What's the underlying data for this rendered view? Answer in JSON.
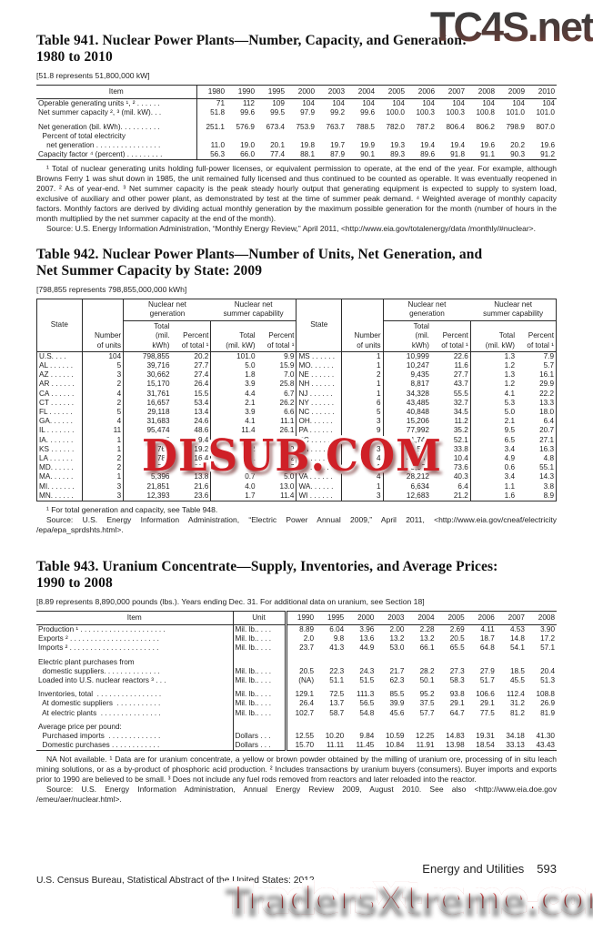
{
  "watermarks": {
    "top_right": "TC4S.net",
    "center": "DLSUB.COM",
    "bottom": "TradersXtreme.com"
  },
  "footer": {
    "census_line": "U.S. Census Bureau, Statistical Abstract of the United States: 2012",
    "section": "Energy and Utilities",
    "page": "593"
  },
  "table941": {
    "title_line1": "Table 941. Nuclear Power Plants—Number, Capacity, and Generation:",
    "title_line2": "1980 to 2010",
    "bracket_note": "[51.8 represents 51,800,000 kW]",
    "item_header": "Item",
    "years": [
      "1980",
      "1990",
      "1995",
      "2000",
      "2003",
      "2004",
      "2005",
      "2006",
      "2007",
      "2008",
      "2009",
      "2010"
    ],
    "rows": [
      {
        "cells": [
          "Operable generating units ¹, ² . . . . . .",
          "71",
          "112",
          "109",
          "104",
          "104",
          "104",
          "104",
          "104",
          "104",
          "104",
          "104",
          "104"
        ]
      },
      {
        "cells": [
          "Net summer capacity ², ³ (mil. kW). . .",
          "51.8",
          "99.6",
          "99.5",
          "97.9",
          "99.2",
          "99.6",
          "100.0",
          "100.3",
          "100.3",
          "100.8",
          "101.0",
          "101.0"
        ]
      },
      {
        "spacer": true,
        "cells": []
      },
      {
        "cells": [
          "Net generation (bil. kWh). . . . . . . . . .",
          "251.1",
          "576.9",
          "673.4",
          "753.9",
          "763.7",
          "788.5",
          "782.0",
          "787.2",
          "806.4",
          "806.2",
          "798.9",
          "807.0"
        ]
      },
      {
        "cells": [
          "  Percent of total electricity",
          "",
          "",
          "",
          "",
          "",
          "",
          "",
          "",
          "",
          "",
          "",
          ""
        ]
      },
      {
        "cells": [
          "    net generation . . . . . . . . . . . . . . . .",
          "11.0",
          "19.0",
          "20.1",
          "19.8",
          "19.7",
          "19.9",
          "19.3",
          "19.4",
          "19.4",
          "19.6",
          "20.2",
          "19.6"
        ]
      },
      {
        "cells": [
          "Capacity factor ⁴ (percent) . . . . . . . . .",
          "56.3",
          "66.0",
          "77.4",
          "88.1",
          "87.9",
          "90.1",
          "89.3",
          "89.6",
          "91.8",
          "91.1",
          "90.3",
          "91.2"
        ]
      }
    ],
    "footnote": "¹ Total of nuclear generating units holding full-power licenses, or equivalent permission to operate, at the end of the year. For example, although Browns Ferry 1 was shut down in 1985, the unit remained fully licensed and thus continued to be counted as operable. It was eventually reopened in 2007. ² As of year-end. ³ Net summer capacity is the peak steady hourly output that generating equipment is expected to supply to system load, exclusive of auxiliary and other power plant, as demonstrated by test at the time of summer peak demand. ⁴ Weighted average of monthly capacity factors. Monthly factors are derived by dividing actual monthly generation by the maximum possible generation for the month (number of hours in the month multiplied by the net summer capacity at the end of the month).",
    "source": "Source: U.S. Energy Information Administration, “Monthly Energy Review,” April 2011, <http://www.eia.gov/totalenergy/data /monthly/#nuclear>."
  },
  "table942": {
    "title_line1": "Table 942. Nuclear Power Plants—Number of Units, Net Generation, and",
    "title_line2": "Net Summer Capacity by State: 2009",
    "bracket_note": "[798,855 represents 798,855,000,000 kWh]",
    "headers": {
      "state": "State",
      "units": "Number\nof units",
      "gen_group": "Nuclear net\ngeneration",
      "cap_group": "Nuclear net\nsummer capability",
      "gen_total": "Total\n(mil.\nkWh)",
      "gen_pct": "Percent\nof total ¹",
      "cap_total": "Total\n(mil. kW)",
      "cap_pct": "Percent\nof total ¹"
    },
    "rows": [
      {
        "cells": [
          "U.S. . . .",
          "104",
          "798,855",
          "20.2",
          "101.0",
          "9.9",
          "MS . . . . . .",
          "1",
          "10,999",
          "22.6",
          "1.3",
          "7.9"
        ],
        "bold_cells": [
          0,
          1,
          2,
          3,
          4,
          5
        ]
      },
      {
        "cells": [
          "AL . . . . . .",
          "5",
          "39,716",
          "27.7",
          "5.0",
          "15.9",
          "MO. . . . . .",
          "1",
          "10,247",
          "11.6",
          "1.2",
          "5.7"
        ]
      },
      {
        "cells": [
          "AZ . . . . . .",
          "3",
          "30,662",
          "27.4",
          "1.8",
          "7.0",
          "NE . . . . . .",
          "2",
          "9,435",
          "27.7",
          "1.3",
          "16.1"
        ]
      },
      {
        "cells": [
          "AR . . . . . .",
          "2",
          "15,170",
          "26.4",
          "3.9",
          "25.8",
          "NH . . . . . .",
          "1",
          "8,817",
          "43.7",
          "1.2",
          "29.9"
        ]
      },
      {
        "cells": [
          "CA . . . . . .",
          "4",
          "31,761",
          "15.5",
          "4.4",
          "6.7",
          "NJ . . . . . .",
          "1",
          "34,328",
          "55.5",
          "4.1",
          "22.2"
        ]
      },
      {
        "cells": [
          "CT . . . . . .",
          "2",
          "16,657",
          "53.4",
          "2.1",
          "26.2",
          "NY . . . . . .",
          "6",
          "43,485",
          "32.7",
          "5.3",
          "13.3"
        ]
      },
      {
        "cells": [
          "FL . . . . . .",
          "5",
          "29,118",
          "13.4",
          "3.9",
          "6.6",
          "NC . . . . . .",
          "5",
          "40,848",
          "34.5",
          "5.0",
          "18.0"
        ]
      },
      {
        "cells": [
          "GA. . . . . .",
          "4",
          "31,683",
          "24.6",
          "4.1",
          "11.1",
          "OH. . . . . .",
          "3",
          "15,206",
          "11.2",
          "2.1",
          "6.4"
        ]
      },
      {
        "cells": [
          "IL . . . . . . .",
          "11",
          "95,474",
          "48.6",
          "11.4",
          "26.1",
          "PA . . . . . .",
          "9",
          "77,992",
          "35.2",
          "9.5",
          "20.7"
        ]
      },
      {
        "cells": [
          "IA. . . . . . .",
          "1",
          "4,675",
          "9.4",
          "0.6",
          "4.2",
          "SC . . . . . .",
          "7",
          "51,744",
          "52.1",
          "6.5",
          "27.1"
        ]
      },
      {
        "cells": [
          "KS . . . . . .",
          "1",
          "8,765",
          "19.2",
          "1.2",
          "9.0",
          "TN . . . . . .",
          "3",
          "27,542",
          "33.8",
          "3.4",
          "16.3"
        ]
      },
      {
        "cells": [
          "LA . . . . . .",
          "2",
          "16,782",
          "16.4",
          "2.1",
          "8.2",
          "TX . . . . . .",
          "4",
          "41,456",
          "10.4",
          "4.9",
          "4.8"
        ]
      },
      {
        "cells": [
          "MD. . . . . .",
          "2",
          "14,550",
          "33.2",
          "1.7",
          "13.7",
          "VT . . . . . .",
          "1",
          "5,361",
          "73.6",
          "0.6",
          "55.1"
        ]
      },
      {
        "cells": [
          "MA. . . . . .",
          "1",
          "5,396",
          "13.8",
          "0.7",
          "5.0",
          "VA . . . . . .",
          "4",
          "28,212",
          "40.3",
          "3.4",
          "14.3"
        ]
      },
      {
        "cells": [
          "MI. . . . . . .",
          "3",
          "21,851",
          "21.6",
          "4.0",
          "13.0",
          "WA. . . . . .",
          "1",
          "6,634",
          "6.4",
          "1.1",
          "3.8"
        ]
      },
      {
        "cells": [
          "MN. . . . . .",
          "3",
          "12,393",
          "23.6",
          "1.7",
          "11.4",
          "WI . . . . . .",
          "3",
          "12,683",
          "21.2",
          "1.6",
          "8.9"
        ]
      }
    ],
    "footnote": "¹ For total generation and capacity, see Table 948.",
    "source": "Source: U.S. Energy Information Administration, “Electric Power Annual 2009,” April 2011, <http://www.eia.gov/cneaf/electricity /epa/epa_sprdshts.html>."
  },
  "table943": {
    "title_line1": "Table 943. Uranium Concentrate—Supply, Inventories, and Average Prices:",
    "title_line2": "1990 to 2008",
    "bracket_note": "[8.89 represents 8,890,000 pounds (lbs.). Years ending Dec. 31. For additional data on uranium, see Section 18]",
    "item_header": "Item",
    "unit_header": "Unit",
    "years": [
      "1990",
      "1995",
      "2000",
      "2003",
      "2004",
      "2005",
      "2006",
      "2007",
      "2008"
    ],
    "rows": [
      {
        "cells": [
          "Production ¹ . . . . . . . . . . . . . . . . . . . . .",
          "Mil. lb.. . . .",
          "8.89",
          "6.04",
          "3.96",
          "2.00",
          "2.28",
          "2.69",
          "4.11",
          "4.53",
          "3.90"
        ]
      },
      {
        "cells": [
          "Exports ² . . . . . . . . . . . . . . . . . . . . . .",
          "Mil. lb.. . . .",
          "2.0",
          "9.8",
          "13.6",
          "13.2",
          "13.2",
          "20.5",
          "18.7",
          "14.8",
          "17.2"
        ]
      },
      {
        "cells": [
          "Imports ² . . . . . . . . . . . . . . . . . . . . . .",
          "Mil. lb.. . . .",
          "23.7",
          "41.3",
          "44.9",
          "53.0",
          "66.1",
          "65.5",
          "64.8",
          "54.1",
          "57.1"
        ]
      },
      {
        "spacer": true,
        "cells": []
      },
      {
        "cells": [
          "Electric plant purchases from",
          "",
          "",
          "",
          "",
          "",
          "",
          "",
          "",
          "",
          ""
        ]
      },
      {
        "cells": [
          "  domestic suppliers. . . . . . . . . . . . . .",
          "Mil. lb.. . . .",
          "20.5",
          "22.3",
          "24.3",
          "21.7",
          "28.2",
          "27.3",
          "27.9",
          "18.5",
          "20.4"
        ]
      },
      {
        "cells": [
          "Loaded into U.S. nuclear reactors ³ . . .",
          "Mil. lb.. . . .",
          "(NA)",
          "51.1",
          "51.5",
          "62.3",
          "50.1",
          "58.3",
          "51.7",
          "45.5",
          "51.3"
        ]
      },
      {
        "spacer": true,
        "cells": []
      },
      {
        "cells": [
          "Inventories, total  . . . . . . . . . . . . . . . .",
          "Mil. lb.. . . .",
          "129.1",
          "72.5",
          "111.3",
          "85.5",
          "95.2",
          "93.8",
          "106.6",
          "112.4",
          "108.8"
        ]
      },
      {
        "cells": [
          "  At domestic suppliers  . . . . . . . . . . .",
          "Mil. lb.. . . .",
          "26.4",
          "13.7",
          "56.5",
          "39.9",
          "37.5",
          "29.1",
          "29.1",
          "31.2",
          "26.9"
        ]
      },
      {
        "cells": [
          "  At electric plants  . . . . . . . . . . . . . . .",
          "Mil. lb.. . . .",
          "102.7",
          "58.7",
          "54.8",
          "45.6",
          "57.7",
          "64.7",
          "77.5",
          "81.2",
          "81.9"
        ]
      },
      {
        "spacer": true,
        "cells": []
      },
      {
        "cells": [
          "Average price per pound:",
          "",
          "",
          "",
          "",
          "",
          "",
          "",
          "",
          "",
          ""
        ]
      },
      {
        "cells": [
          "  Purchased imports  . . . . . . . . . . . . .",
          "Dollars . . .",
          "12.55",
          "10.20",
          "9.84",
          "10.59",
          "12.25",
          "14.83",
          "19.31",
          "34.18",
          "41.30"
        ]
      },
      {
        "cells": [
          "  Domestic purchases . . . . . . . . . . . .",
          "Dollars . . .",
          "15.70",
          "11.11",
          "11.45",
          "10.84",
          "11.91",
          "13.98",
          "18.54",
          "33.13",
          "43.43"
        ]
      }
    ],
    "footnote": "NA Not available. ¹ Data are for uranium concentrate, a yellow or brown powder obtained by the milling of uranium ore, processing of in situ leach mining solutions, or as a by-product of phosphoric acid production. ² Includes transactions by uranium buyers (consumers). Buyer imports and exports prior to 1990 are believed to be small. ³ Does not include any fuel rods removed from reactors and later reloaded into the reactor.",
    "source": "Source: U.S. Energy Information Administration, Annual Energy Review 2009, August 2010. See also <http://www.eia.doe.gov /emeu/aer/nuclear.html>."
  }
}
